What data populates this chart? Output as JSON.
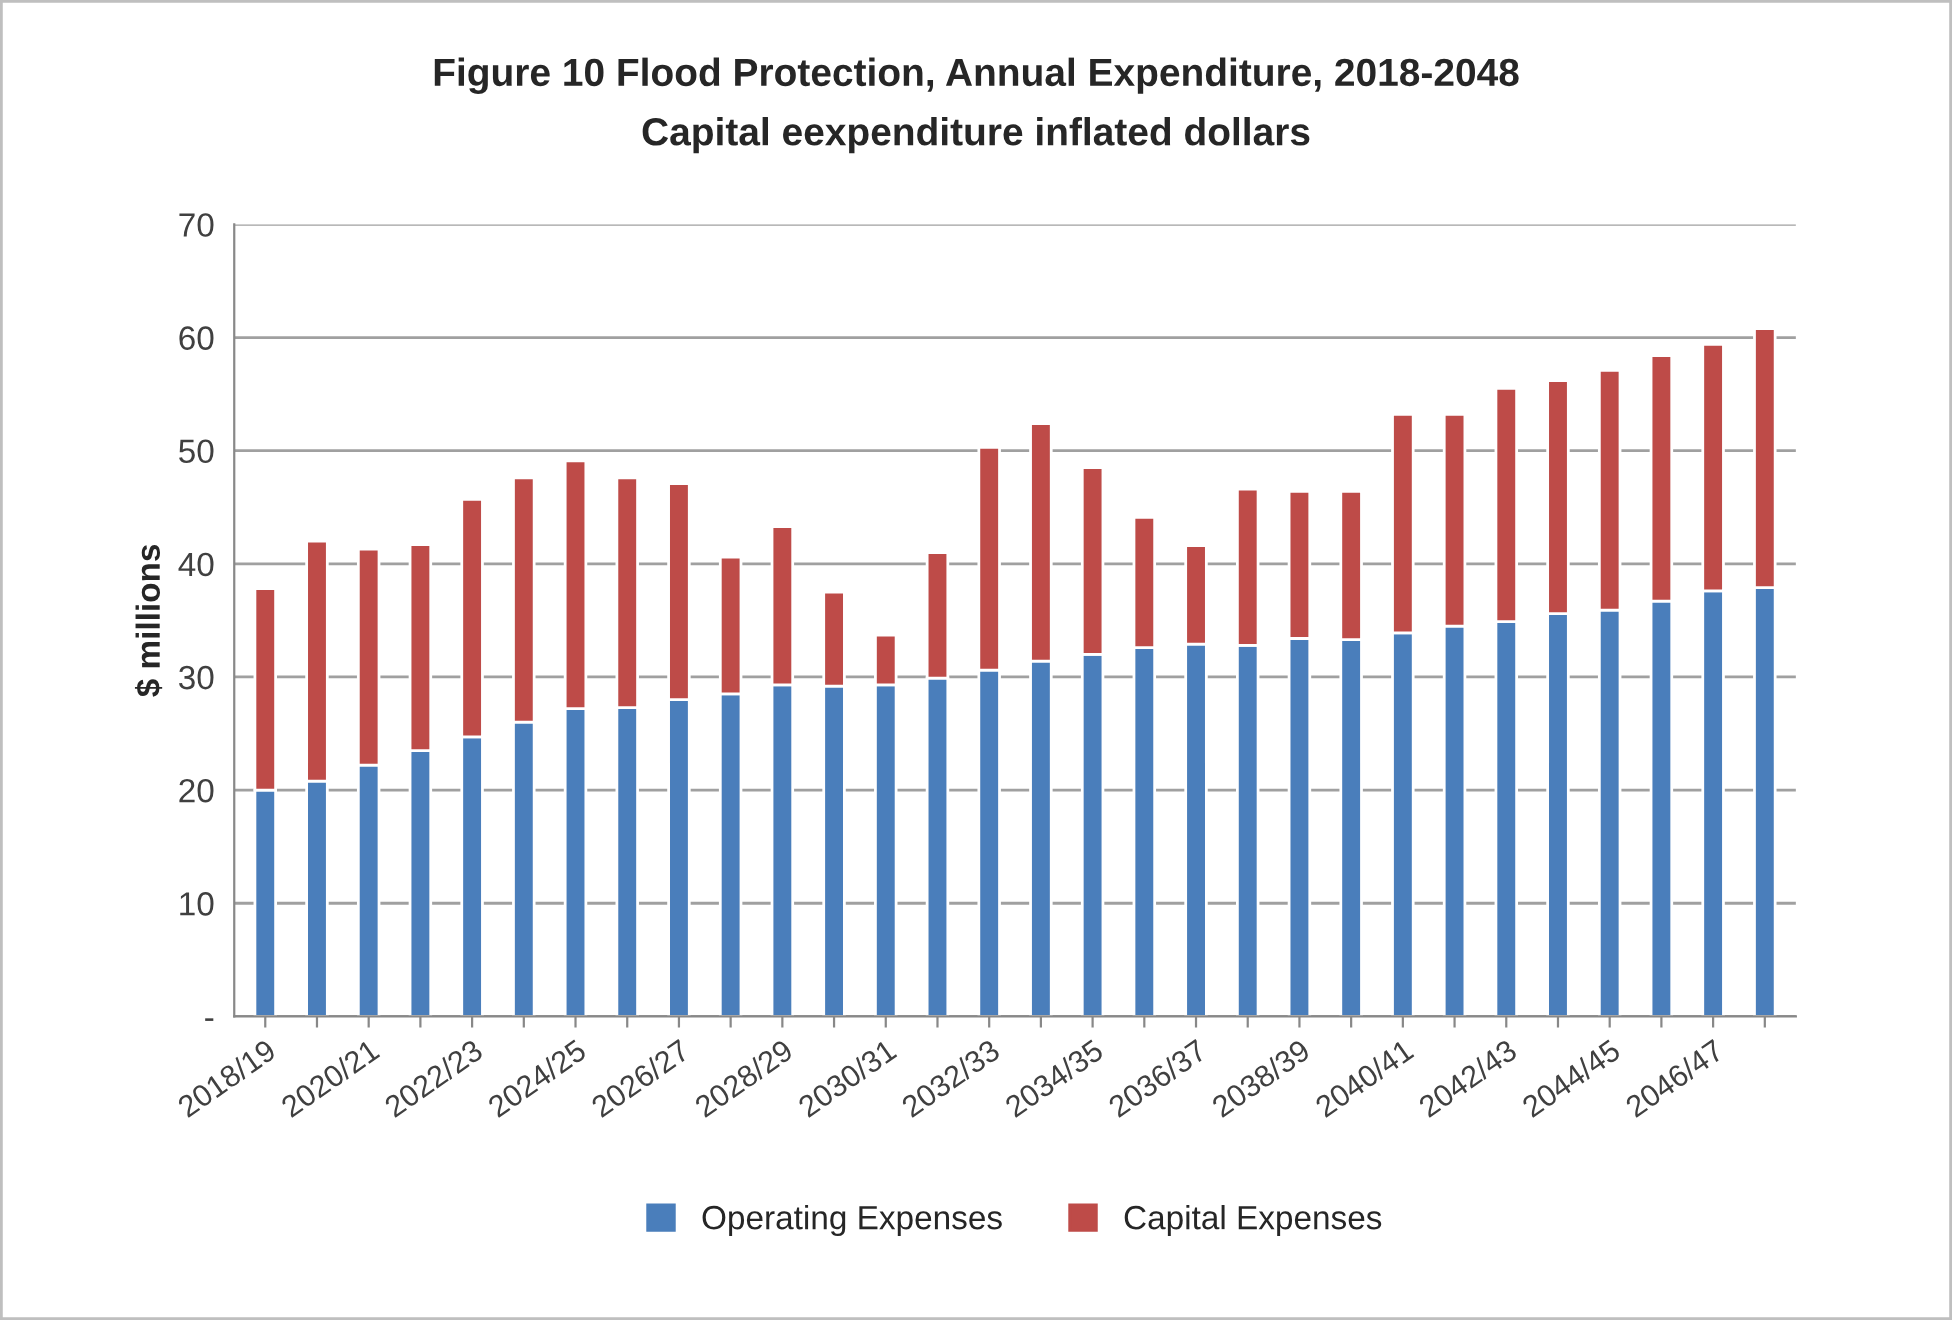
{
  "chart_data": {
    "type": "bar",
    "title": "Figure 10 Flood Protection, Annual Expenditure, 2018-2048",
    "subtitle": "Capital eexpenditure inflated dollars",
    "ylabel": "$ millions",
    "categories": [
      "2018/19",
      null,
      "2020/21",
      null,
      "2022/23",
      null,
      "2024/25",
      null,
      "2026/27",
      null,
      "2028/29",
      null,
      "2030/31",
      null,
      "2032/33",
      null,
      "2034/35",
      null,
      "2036/37",
      null,
      "2038/39",
      null,
      "2040/41",
      null,
      "2042/43",
      null,
      "2044/45",
      null,
      "2046/47",
      null
    ],
    "stacked": true,
    "series": [
      {
        "name": "Operating Expenses",
        "color": "#4a7ebb",
        "values": [
          20,
          20.8,
          22.2,
          23.5,
          24.7,
          26,
          27.2,
          27.3,
          28,
          28.5,
          29.3,
          29.2,
          29.3,
          29.9,
          30.6,
          31.4,
          32,
          32.6,
          32.9,
          32.8,
          33.4,
          33.3,
          33.9,
          34.5,
          34.9,
          35.6,
          35.9,
          36.7,
          37.6,
          37.9
        ]
      },
      {
        "name": "Capital Expenses",
        "color": "#be4b48",
        "values": [
          17.8,
          21.2,
          19.1,
          18.2,
          21.0,
          21.6,
          21.9,
          20.3,
          19.1,
          12.1,
          14.0,
          8.3,
          4.4,
          11.1,
          19.7,
          21.0,
          16.5,
          11.5,
          8.7,
          13.8,
          13.0,
          13.1,
          19.3,
          18.7,
          20.6,
          20.6,
          21.2,
          21.7,
          21.8,
          22.9
        ]
      }
    ],
    "ylim": [
      0,
      70
    ],
    "yticks": [
      {
        "value": 0,
        "label": "-"
      },
      10,
      20,
      30,
      40,
      50,
      60,
      70
    ],
    "grid": "y",
    "legend": "bottom"
  }
}
